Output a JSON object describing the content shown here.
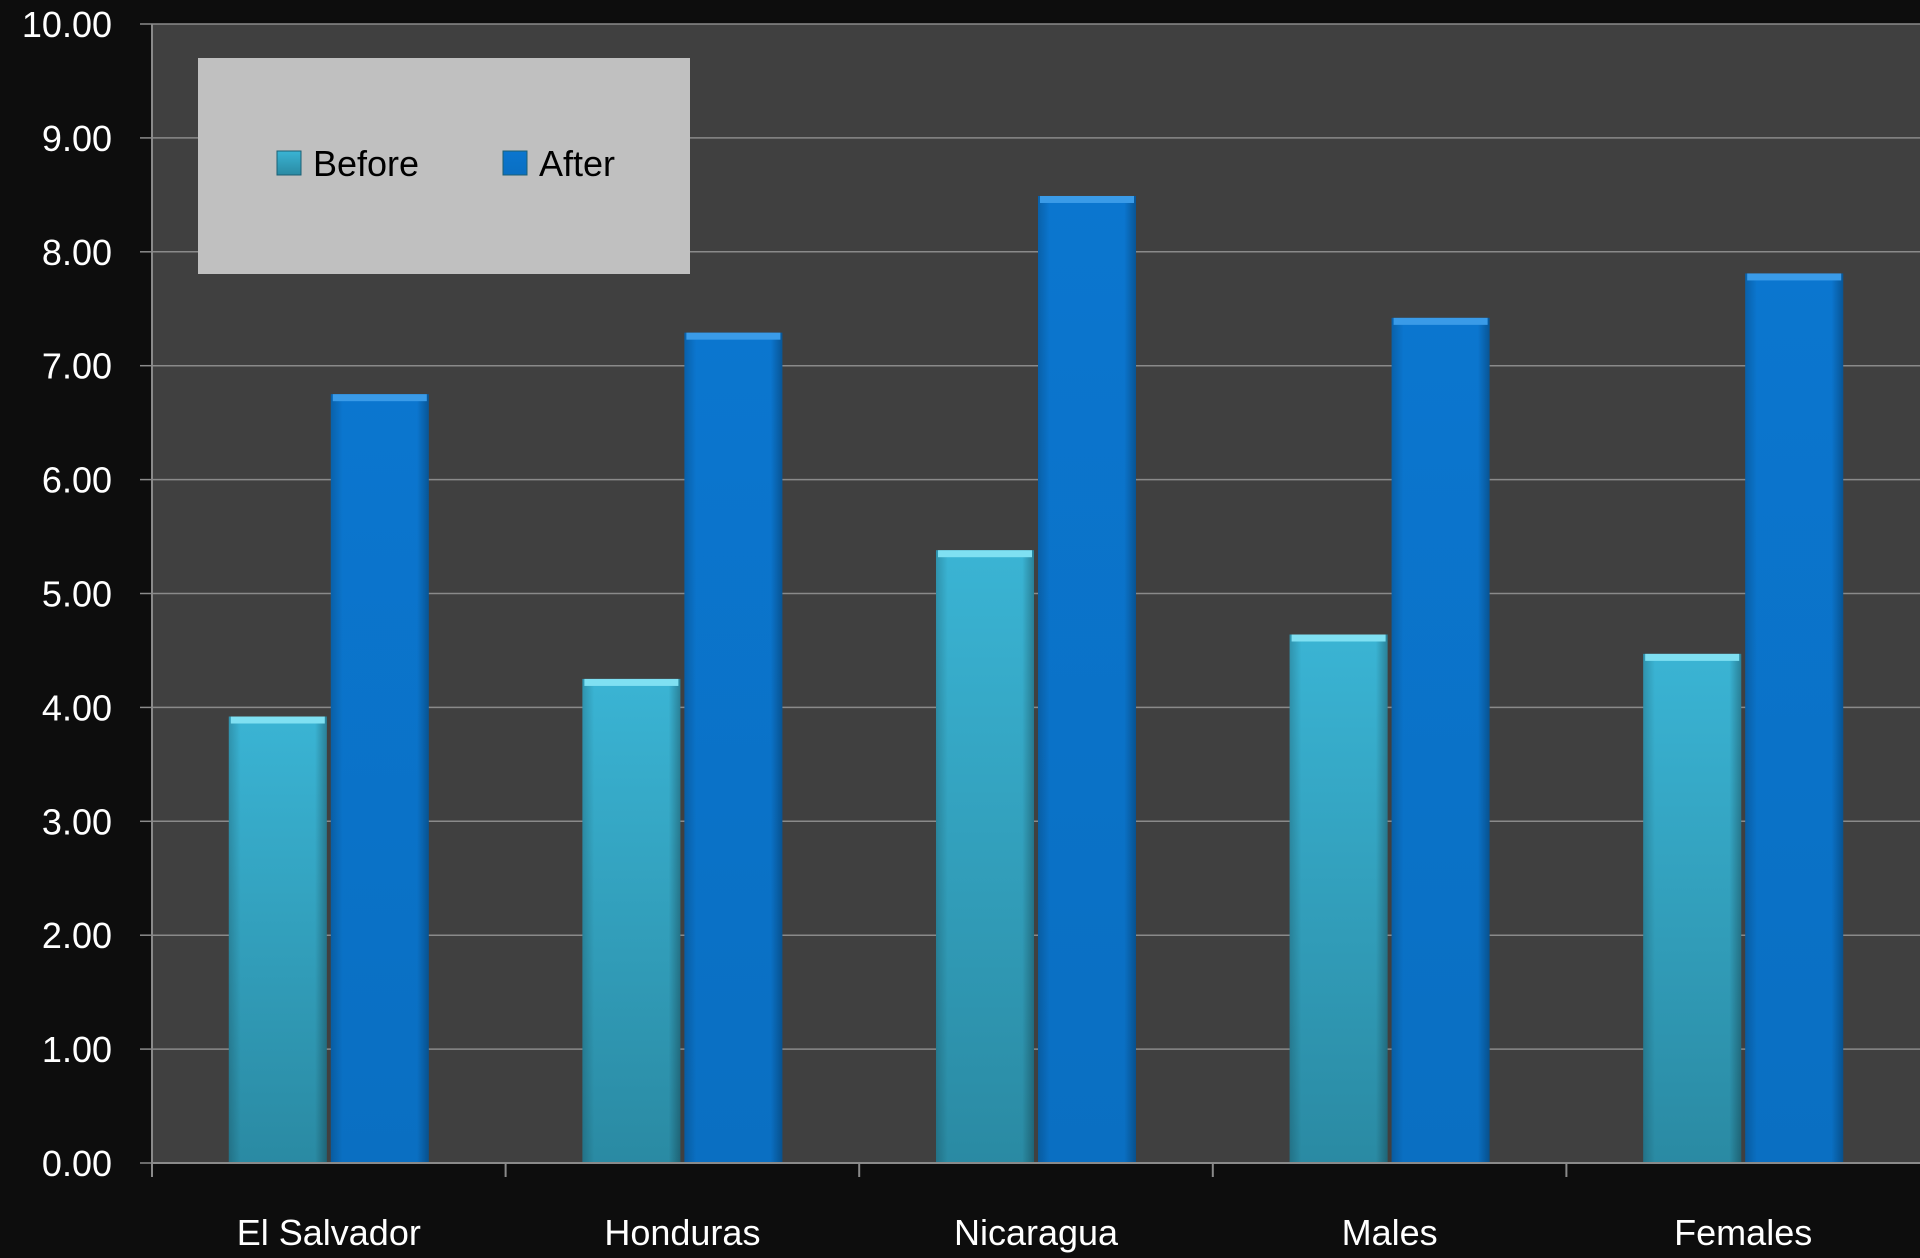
{
  "chart_data": {
    "type": "bar",
    "categories": [
      "El Salvador",
      "Honduras",
      "Nicaragua",
      "Males",
      "Females"
    ],
    "series": [
      {
        "name": "Before",
        "values": [
          3.92,
          4.25,
          5.38,
          4.64,
          4.47
        ]
      },
      {
        "name": "After",
        "values": [
          6.75,
          7.29,
          8.49,
          7.42,
          7.81
        ]
      }
    ],
    "ylim": [
      0,
      10
    ],
    "yticks": [
      "0.00",
      "1.00",
      "2.00",
      "3.00",
      "4.00",
      "5.00",
      "6.00",
      "7.00",
      "8.00",
      "9.00",
      "10.00"
    ],
    "grid": true,
    "legend_position": "top-left",
    "colors": {
      "figure_background": "#0d0d0d",
      "plot_background": "#404040",
      "gridline": "#8a8a8a",
      "legend_background": "#c0c0c0",
      "Before": "#36a9c8",
      "After": "#0b72c9",
      "text": "#ffffff",
      "legend_text": "#000000"
    }
  }
}
